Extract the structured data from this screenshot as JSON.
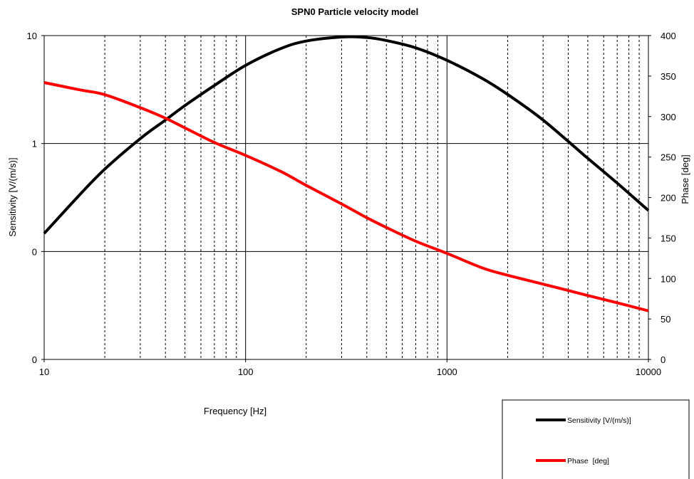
{
  "chart_data": {
    "type": "line",
    "title": "SPN0  Particle velocity model",
    "xlabel": "Frequency [Hz]",
    "ylabel_left": "Sensitivity [V/(m/s)]",
    "ylabel_right": "Phase [deg]",
    "x_scale": "log",
    "xlim": [
      10,
      10000
    ],
    "x_ticks": [
      "10",
      "100",
      "1000",
      "10000"
    ],
    "y_left_scale": "log",
    "y_left_ticks": [
      "0",
      "0",
      "1",
      "10"
    ],
    "y_right_range": [
      0,
      400
    ],
    "y_right_ticks": [
      "0",
      "50",
      "100",
      "150",
      "200",
      "250",
      "300",
      "350",
      "400"
    ],
    "grid": true,
    "legend_position": "bottom-right",
    "series": [
      {
        "name": "Sensitivity [V/(m/s)]",
        "axis": "left",
        "color": "#000000",
        "x": [
          10,
          15,
          20,
          30,
          40,
          50,
          70,
          100,
          150,
          200,
          300,
          400,
          500,
          700,
          1000,
          1500,
          2000,
          3000,
          5000,
          7000,
          10000
        ],
        "y": [
          0.147,
          0.335,
          0.58,
          1.11,
          1.65,
          2.25,
          3.45,
          5.3,
          7.6,
          8.9,
          9.7,
          9.6,
          9.0,
          7.7,
          5.9,
          4.0,
          2.85,
          1.65,
          0.73,
          0.43,
          0.24
        ]
      },
      {
        "name": "Phase  [deg]",
        "axis": "right",
        "color": "#ff0000",
        "x": [
          10,
          15,
          20,
          30,
          40,
          50,
          70,
          100,
          150,
          200,
          300,
          400,
          500,
          700,
          1000,
          1500,
          2000,
          3000,
          5000,
          7000,
          10000
        ],
        "y": [
          342,
          333,
          327,
          311,
          298,
          286,
          268,
          252,
          232,
          215,
          192,
          175,
          163,
          146,
          131,
          113,
          104,
          93,
          79,
          70,
          60
        ]
      }
    ]
  }
}
